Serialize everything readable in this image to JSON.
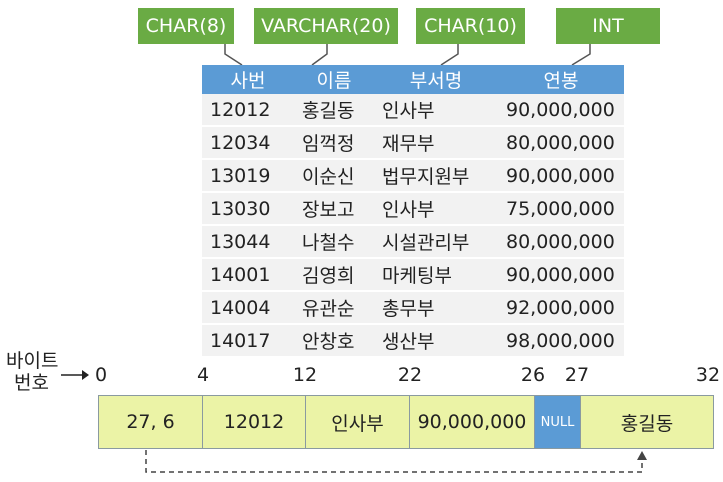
{
  "type_tags": [
    "CHAR(8)",
    "VARCHAR(20)",
    "CHAR(10)",
    "INT"
  ],
  "table": {
    "headers": [
      "사번",
      "이름",
      "부서명",
      "연봉"
    ],
    "rows": [
      [
        "12012",
        "홍길동",
        "인사부",
        "90,000,000"
      ],
      [
        "12034",
        "임꺽정",
        "재무부",
        "80,000,000"
      ],
      [
        "13019",
        "이순신",
        "법무지원부",
        "90,000,000"
      ],
      [
        "13030",
        "장보고",
        "인사부",
        "75,000,000"
      ],
      [
        "13044",
        "나철수",
        "시설관리부",
        "80,000,000"
      ],
      [
        "14001",
        "김영희",
        "마케팅부",
        "90,000,000"
      ],
      [
        "14004",
        "유관순",
        "총무부",
        "92,000,000"
      ],
      [
        "14017",
        "안창호",
        "생산부",
        "98,000,000"
      ]
    ]
  },
  "byte_label_line1": "바이트",
  "byte_label_line2": "번호",
  "offsets": [
    "0",
    "4",
    "12",
    "22",
    "26",
    "27",
    "32"
  ],
  "record_cells": [
    "27, 6",
    "12012",
    "인사부",
    "90,000,000",
    "NULL",
    "홍길동"
  ],
  "colors": {
    "tag_green": "#6aab44",
    "header_blue": "#5b9bd5",
    "row_gray": "#f2f2f2",
    "cell_yellow": "#ebf3a6",
    "null_blue": "#5b9bd5"
  }
}
